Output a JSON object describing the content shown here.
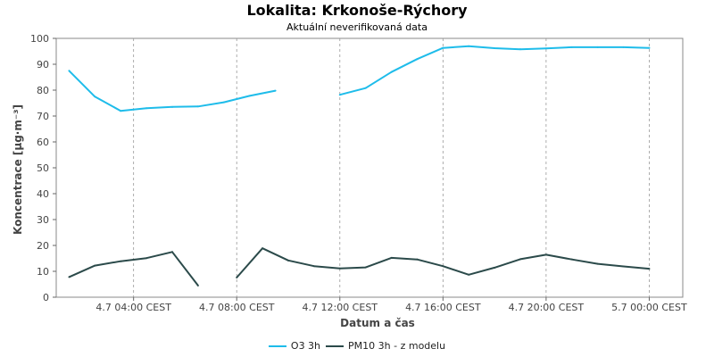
{
  "chart_data": {
    "type": "line",
    "title": "Lokalita: Krkonoše-Rýchory",
    "subtitle": "Aktuální neverifikovaná data",
    "xlabel": "Datum a čas",
    "ylabel": "Koncentrace [µg·m⁻³]",
    "ylim": [
      0,
      100
    ],
    "yticks": [
      "0",
      "10",
      "20",
      "30",
      "40",
      "50",
      "60",
      "70",
      "80",
      "90",
      "100"
    ],
    "xlim": [
      1,
      25.3
    ],
    "xticks": [
      {
        "x": 4,
        "label": "4.7 04:00 CEST"
      },
      {
        "x": 8,
        "label": "4.7 08:00 CEST"
      },
      {
        "x": 12,
        "label": "4.7 12:00 CEST"
      },
      {
        "x": 16,
        "label": "4.7 16:00 CEST"
      },
      {
        "x": 20,
        "label": "4.7 20:00 CEST"
      },
      {
        "x": 24,
        "label": "5.7 00:00 CEST"
      }
    ],
    "grid": true,
    "legend_position": "bottom-center",
    "series": [
      {
        "name": "O3 3h",
        "color": "#1ebcea",
        "points": [
          [
            1.5,
            87.5
          ],
          [
            2.5,
            77.5
          ],
          [
            3.5,
            72
          ],
          [
            4.5,
            73
          ],
          [
            5.5,
            73.5
          ],
          [
            6.5,
            73.7
          ],
          [
            7.5,
            75.3
          ],
          [
            8.5,
            77.8
          ],
          [
            9.5,
            79.8
          ],
          null,
          [
            12,
            78.2
          ],
          [
            13,
            80.8
          ],
          [
            14,
            87
          ],
          [
            15,
            92
          ],
          [
            16,
            96.3
          ],
          [
            17,
            97
          ],
          [
            18,
            96.2
          ],
          [
            19,
            95.8
          ],
          [
            20,
            96.1
          ],
          [
            21,
            96.6
          ],
          [
            22,
            96.6
          ],
          [
            23,
            96.6
          ],
          [
            24,
            96.3
          ]
        ]
      },
      {
        "name": "PM10 3h - z modelu",
        "color": "#2b4a4a",
        "points": [
          [
            1.5,
            7.8
          ],
          [
            2.5,
            12.2
          ],
          [
            3.5,
            13.9
          ],
          [
            4.5,
            15.1
          ],
          [
            5.5,
            17.5
          ],
          [
            6.5,
            4.5
          ],
          null,
          [
            8,
            7.6
          ],
          [
            9,
            18.9
          ],
          [
            10,
            14.2
          ],
          [
            11,
            12
          ],
          [
            12,
            11.1
          ],
          [
            13,
            11.5
          ],
          [
            14,
            15.2
          ],
          [
            15,
            14.6
          ],
          [
            16,
            12
          ],
          [
            17,
            8.7
          ],
          [
            18,
            11.4
          ],
          [
            19,
            14.7
          ],
          [
            20,
            16.4
          ],
          [
            21,
            14.6
          ],
          [
            22,
            12.9
          ],
          [
            23,
            11.9
          ],
          [
            24,
            11
          ]
        ]
      }
    ]
  }
}
